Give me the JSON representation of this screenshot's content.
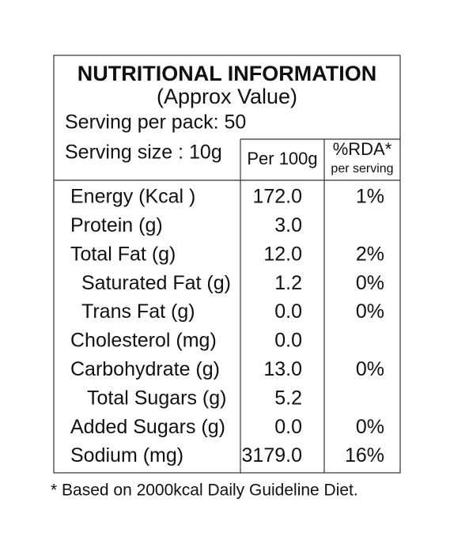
{
  "title": "NUTRITIONAL INFORMATION",
  "subtitle": "(Approx Value)",
  "serving_per_pack": "Serving per pack: 50",
  "table": {
    "serving_size": "Serving size : 10g",
    "per_100g_header": "Per 100g",
    "rda_header": "%RDA*",
    "rda_subheader": "per serving",
    "rows": [
      {
        "label": "Energy (Kcal )",
        "per_100g": "172.0",
        "rda": "1%"
      },
      {
        "label": "Protein (g)",
        "per_100g": "3.0"
      },
      {
        "label": "Total Fat (g)",
        "per_100g": "12.0",
        "rda": "2%"
      },
      {
        "label": "Saturated Fat (g)",
        "per_100g": "1.2",
        "rda": "0%"
      },
      {
        "label": "Trans Fat (g)",
        "per_100g": "0.0",
        "rda": "0%"
      },
      {
        "label": "Cholesterol (mg)",
        "per_100g": "0.0"
      },
      {
        "label": "Carbohydrate (g)",
        "per_100g": "13.0",
        "rda": "0%"
      },
      {
        "label": "Total Sugars (g)",
        "per_100g": "5.2"
      },
      {
        "label": "Added Sugars (g)",
        "per_100g": "0.0",
        "rda": "0%"
      },
      {
        "label": "Sodium (mg)",
        "per_100g": "3179.0",
        "rda": "16%"
      }
    ]
  },
  "footnote": "* Based on 2000kcal Daily Guideline Diet."
}
